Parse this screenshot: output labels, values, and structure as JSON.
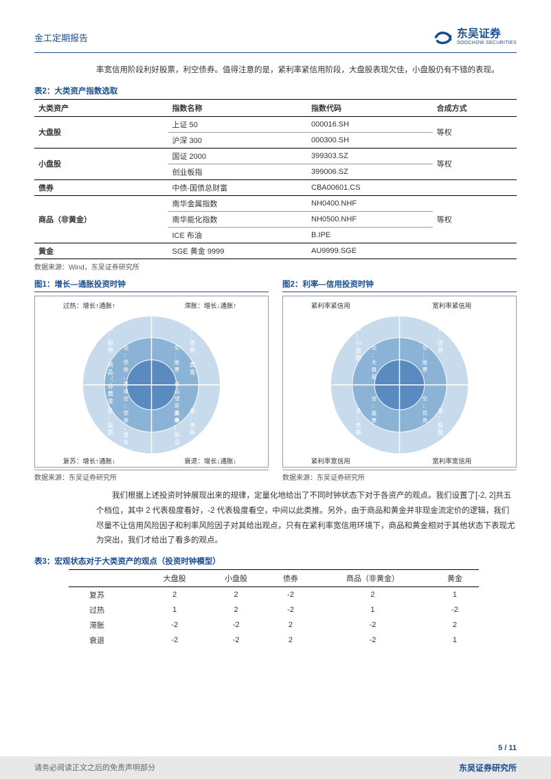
{
  "header": {
    "title": "金工定期报告",
    "logo_cn": "东吴证券",
    "logo_en": "SOOCHOW SECURITIES"
  },
  "intro": "率宽信用阶段利好股票，利空债券。值得注意的是，紧利率紧信用阶段，大盘股表现欠佳，小盘股仍有不错的表现。",
  "table2": {
    "title": "表2：大类资产指数选取",
    "headers": [
      "大类资产",
      "指数名称",
      "指数代码",
      "合成方式"
    ],
    "groups": [
      {
        "asset": "大盘股",
        "method": "等权",
        "rows": [
          {
            "name": "上证 50",
            "code": "000016.SH"
          },
          {
            "name": "沪深 300",
            "code": "000300.SH"
          }
        ]
      },
      {
        "asset": "小盘股",
        "method": "等权",
        "rows": [
          {
            "name": "国证 2000",
            "code": "399303.SZ"
          },
          {
            "name": "创业板指",
            "code": "399006.SZ"
          }
        ]
      },
      {
        "asset": "债券",
        "method": "",
        "rows": [
          {
            "name": "中债-国债总财富",
            "code": "CBA00601.CS"
          }
        ]
      },
      {
        "asset": "商品（非黄金）",
        "method": "等权",
        "rows": [
          {
            "name": "南华金属指数",
            "code": "NH0400.NHF"
          },
          {
            "name": "南华能化指数",
            "code": "NH0500.NHF"
          },
          {
            "name": "ICE 布油",
            "code": "B.IPE"
          }
        ]
      },
      {
        "asset": "黄金",
        "method": "",
        "rows": [
          {
            "name": "SGE 黄金 9999",
            "code": "AU9999.SGE"
          }
        ]
      }
    ],
    "source": "数据来源：Wind，东吴证券研究所"
  },
  "chart1": {
    "title": "图1：增长—通胀投资时钟",
    "corners": {
      "tl": "过热：增长↑通胀↑",
      "tr": "滞胀：增长↓通胀↑",
      "bl": "复苏：增长↑通胀↓",
      "br": "衰退：增长↓通胀↓"
    },
    "outer": {
      "tl": "多：股票、商品（非黄金）",
      "tr": "多：债券、黄金",
      "br": "多：债券、黄金",
      "bl": "多：股票"
    },
    "mid": {
      "tl": "空：债券、黄金",
      "tr": "空：股票、商品（非黄金）",
      "br": "空：股票、商品（非黄金）",
      "bl": "空：债券、黄金"
    },
    "inner": {
      "tl": "商品（非黄金）",
      "tr": "黄金",
      "br": "债券",
      "bl": "股票"
    },
    "colors": {
      "outer": "#c7dbed",
      "mid": "#8bb3d6",
      "inner": "#5a8bc0",
      "border": "#999999"
    },
    "source": "数据来源：东吴证券研究所"
  },
  "chart2": {
    "title": "图2：利率—信用投资时钟",
    "corners": {
      "tl": "紧利率紧信用",
      "tr": "宽利率紧信用",
      "bl": "紧利率宽信用",
      "br": "宽利率宽信用"
    },
    "outer": {
      "tl": "多：小盘股",
      "tr": "多：债券",
      "br": "多：股票",
      "bl": "多：债券"
    },
    "mid": {
      "tl": "空：大盘股",
      "tr": "空：股票",
      "br": "空：债券",
      "bl": "空：股票"
    },
    "colors": {
      "outer": "#c7dbed",
      "mid": "#8bb3d6",
      "inner": "#5a8bc0",
      "border": "#999999"
    },
    "source": "数据来源：东吴证券研究所"
  },
  "body": "我们根据上述投资时钟展现出来的规律，定量化地给出了不同时钟状态下对于各资产的观点。我们设置了[-2, 2]共五个档位，其中 2 代表极度看好，-2 代表极度看空，中间以此类推。另外，由于商品和黄金并非现金流定价的逻辑，我们尽量不让信用风险因子和利率风险因子对其给出观点，只有在紧利率宽信用环境下，商品和黄金相对于其他状态下表现尤为突出，我们才给出了看多的观点。",
  "table3": {
    "title": "表3：宏观状态对于大类资产的观点（投资时钟模型）",
    "headers": [
      "",
      "大盘股",
      "小盘股",
      "债券",
      "商品（非黄金）",
      "黄金"
    ],
    "rows": [
      {
        "label": "复苏",
        "v": [
          "2",
          "2",
          "-2",
          "2",
          "1"
        ]
      },
      {
        "label": "过热",
        "v": [
          "1",
          "2",
          "-2",
          "1",
          "-2"
        ]
      },
      {
        "label": "滞胀",
        "v": [
          "-2",
          "-2",
          "2",
          "-2",
          "2"
        ]
      },
      {
        "label": "衰退",
        "v": [
          "-2",
          "-2",
          "2",
          "-2",
          "1"
        ]
      }
    ]
  },
  "footer": {
    "page": "5 / 11",
    "disclaimer": "请务必阅读正文之后的免责声明部分",
    "org": "东吴证券研究所"
  }
}
